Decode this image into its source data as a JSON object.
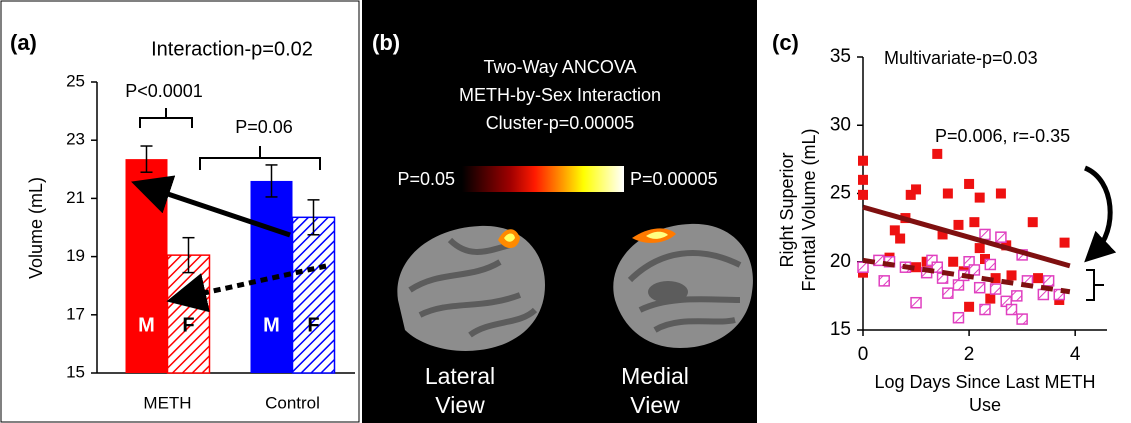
{
  "chart_data": [
    {
      "type": "bar",
      "panel": "(a)",
      "title": "Interaction-p=0.02",
      "y_label": "Volume (mL)",
      "categories": [
        "METH",
        "Control"
      ],
      "series": [
        {
          "name": "M",
          "colors": [
            "#ff0000",
            "#0000ff"
          ],
          "values": [
            22.35,
            21.6
          ],
          "errors": [
            0.45,
            0.55
          ]
        },
        {
          "name": "F",
          "colors": [
            "#ff0000",
            "#0000ff"
          ],
          "hatch": true,
          "values": [
            19.05,
            20.35
          ],
          "errors": [
            0.6,
            0.6
          ]
        }
      ],
      "ylim": [
        15,
        25
      ],
      "yticks": [
        15,
        17,
        19,
        21,
        23,
        25
      ],
      "annotations": [
        "P<0.0001",
        "P=0.06"
      ]
    },
    {
      "type": "scatter",
      "panel": "(c)",
      "title": "Multivariate-p=0.03",
      "annotations": [
        "P=0.006, r=-0.35"
      ],
      "y_label": [
        "Right Superior",
        "Frontal Volume (mL)"
      ],
      "x_label": [
        "Log Days Since Last METH",
        "Use"
      ],
      "xlim": [
        0,
        4.6
      ],
      "ylim": [
        15,
        35
      ],
      "xticks": [
        0,
        2,
        4
      ],
      "yticks": [
        15,
        20,
        25,
        30,
        35
      ],
      "series": [
        {
          "color": "#ee1111",
          "marker": "square",
          "x": [
            0.0,
            0.0,
            0.0,
            0.0,
            0.5,
            0.6,
            0.7,
            0.8,
            0.9,
            1.0,
            1.0,
            1.2,
            1.4,
            1.5,
            1.6,
            1.7,
            1.8,
            1.9,
            2.0,
            2.1,
            2.2,
            2.2,
            2.3,
            2.4,
            2.5,
            2.6,
            2.7,
            2.8,
            3.2,
            3.3,
            3.7,
            3.8,
            2.9,
            2.0
          ],
          "values": [
            27.4,
            26.0,
            24.9,
            19.2,
            20.3,
            22.3,
            21.7,
            23.2,
            24.9,
            25.3,
            19.6,
            20.0,
            27.9,
            22.0,
            25.0,
            20.0,
            22.7,
            19.3,
            25.7,
            22.9,
            24.7,
            21.0,
            20.2,
            17.3,
            18.8,
            25.0,
            21.2,
            19.0,
            22.9,
            18.8,
            17.2,
            21.4,
            17.5,
            16.7
          ],
          "fit": {
            "x": [
              0,
              3.9
            ],
            "values": [
              24.0,
              19.7
            ],
            "color": "#7f1010",
            "dash": false
          }
        },
        {
          "color": "#e040c0",
          "marker": "square",
          "hatch": true,
          "x": [
            0.0,
            0.3,
            0.4,
            0.5,
            0.8,
            1.0,
            1.2,
            1.3,
            1.4,
            1.5,
            1.6,
            1.8,
            1.9,
            2.0,
            2.1,
            2.2,
            2.3,
            2.4,
            2.5,
            2.6,
            2.7,
            2.8,
            2.9,
            3.0,
            3.1,
            3.0,
            3.4,
            3.5,
            3.7,
            2.3,
            1.8
          ],
          "values": [
            19.6,
            20.1,
            18.6,
            20.0,
            19.6,
            17.0,
            19.2,
            20.1,
            19.6,
            18.8,
            17.7,
            18.3,
            19.0,
            20.0,
            19.4,
            18.1,
            16.5,
            19.8,
            18.0,
            21.8,
            17.1,
            16.5,
            17.5,
            15.8,
            18.6,
            20.5,
            17.6,
            18.6,
            17.6,
            22.0,
            15.9
          ],
          "fit": {
            "x": [
              0,
              3.9
            ],
            "values": [
              20.1,
              17.8
            ],
            "color": "#7f1010",
            "dash": true
          }
        }
      ]
    }
  ],
  "panel_b": {
    "label": "(b)",
    "title": [
      "Two-Way ANCOVA",
      "METH-by-Sex Interaction",
      "Cluster-p=0.00005"
    ],
    "colorbar": [
      "P=0.05",
      "P=0.00005"
    ],
    "views": [
      [
        "Lateral",
        "View"
      ],
      [
        "Medial",
        "View"
      ]
    ]
  }
}
